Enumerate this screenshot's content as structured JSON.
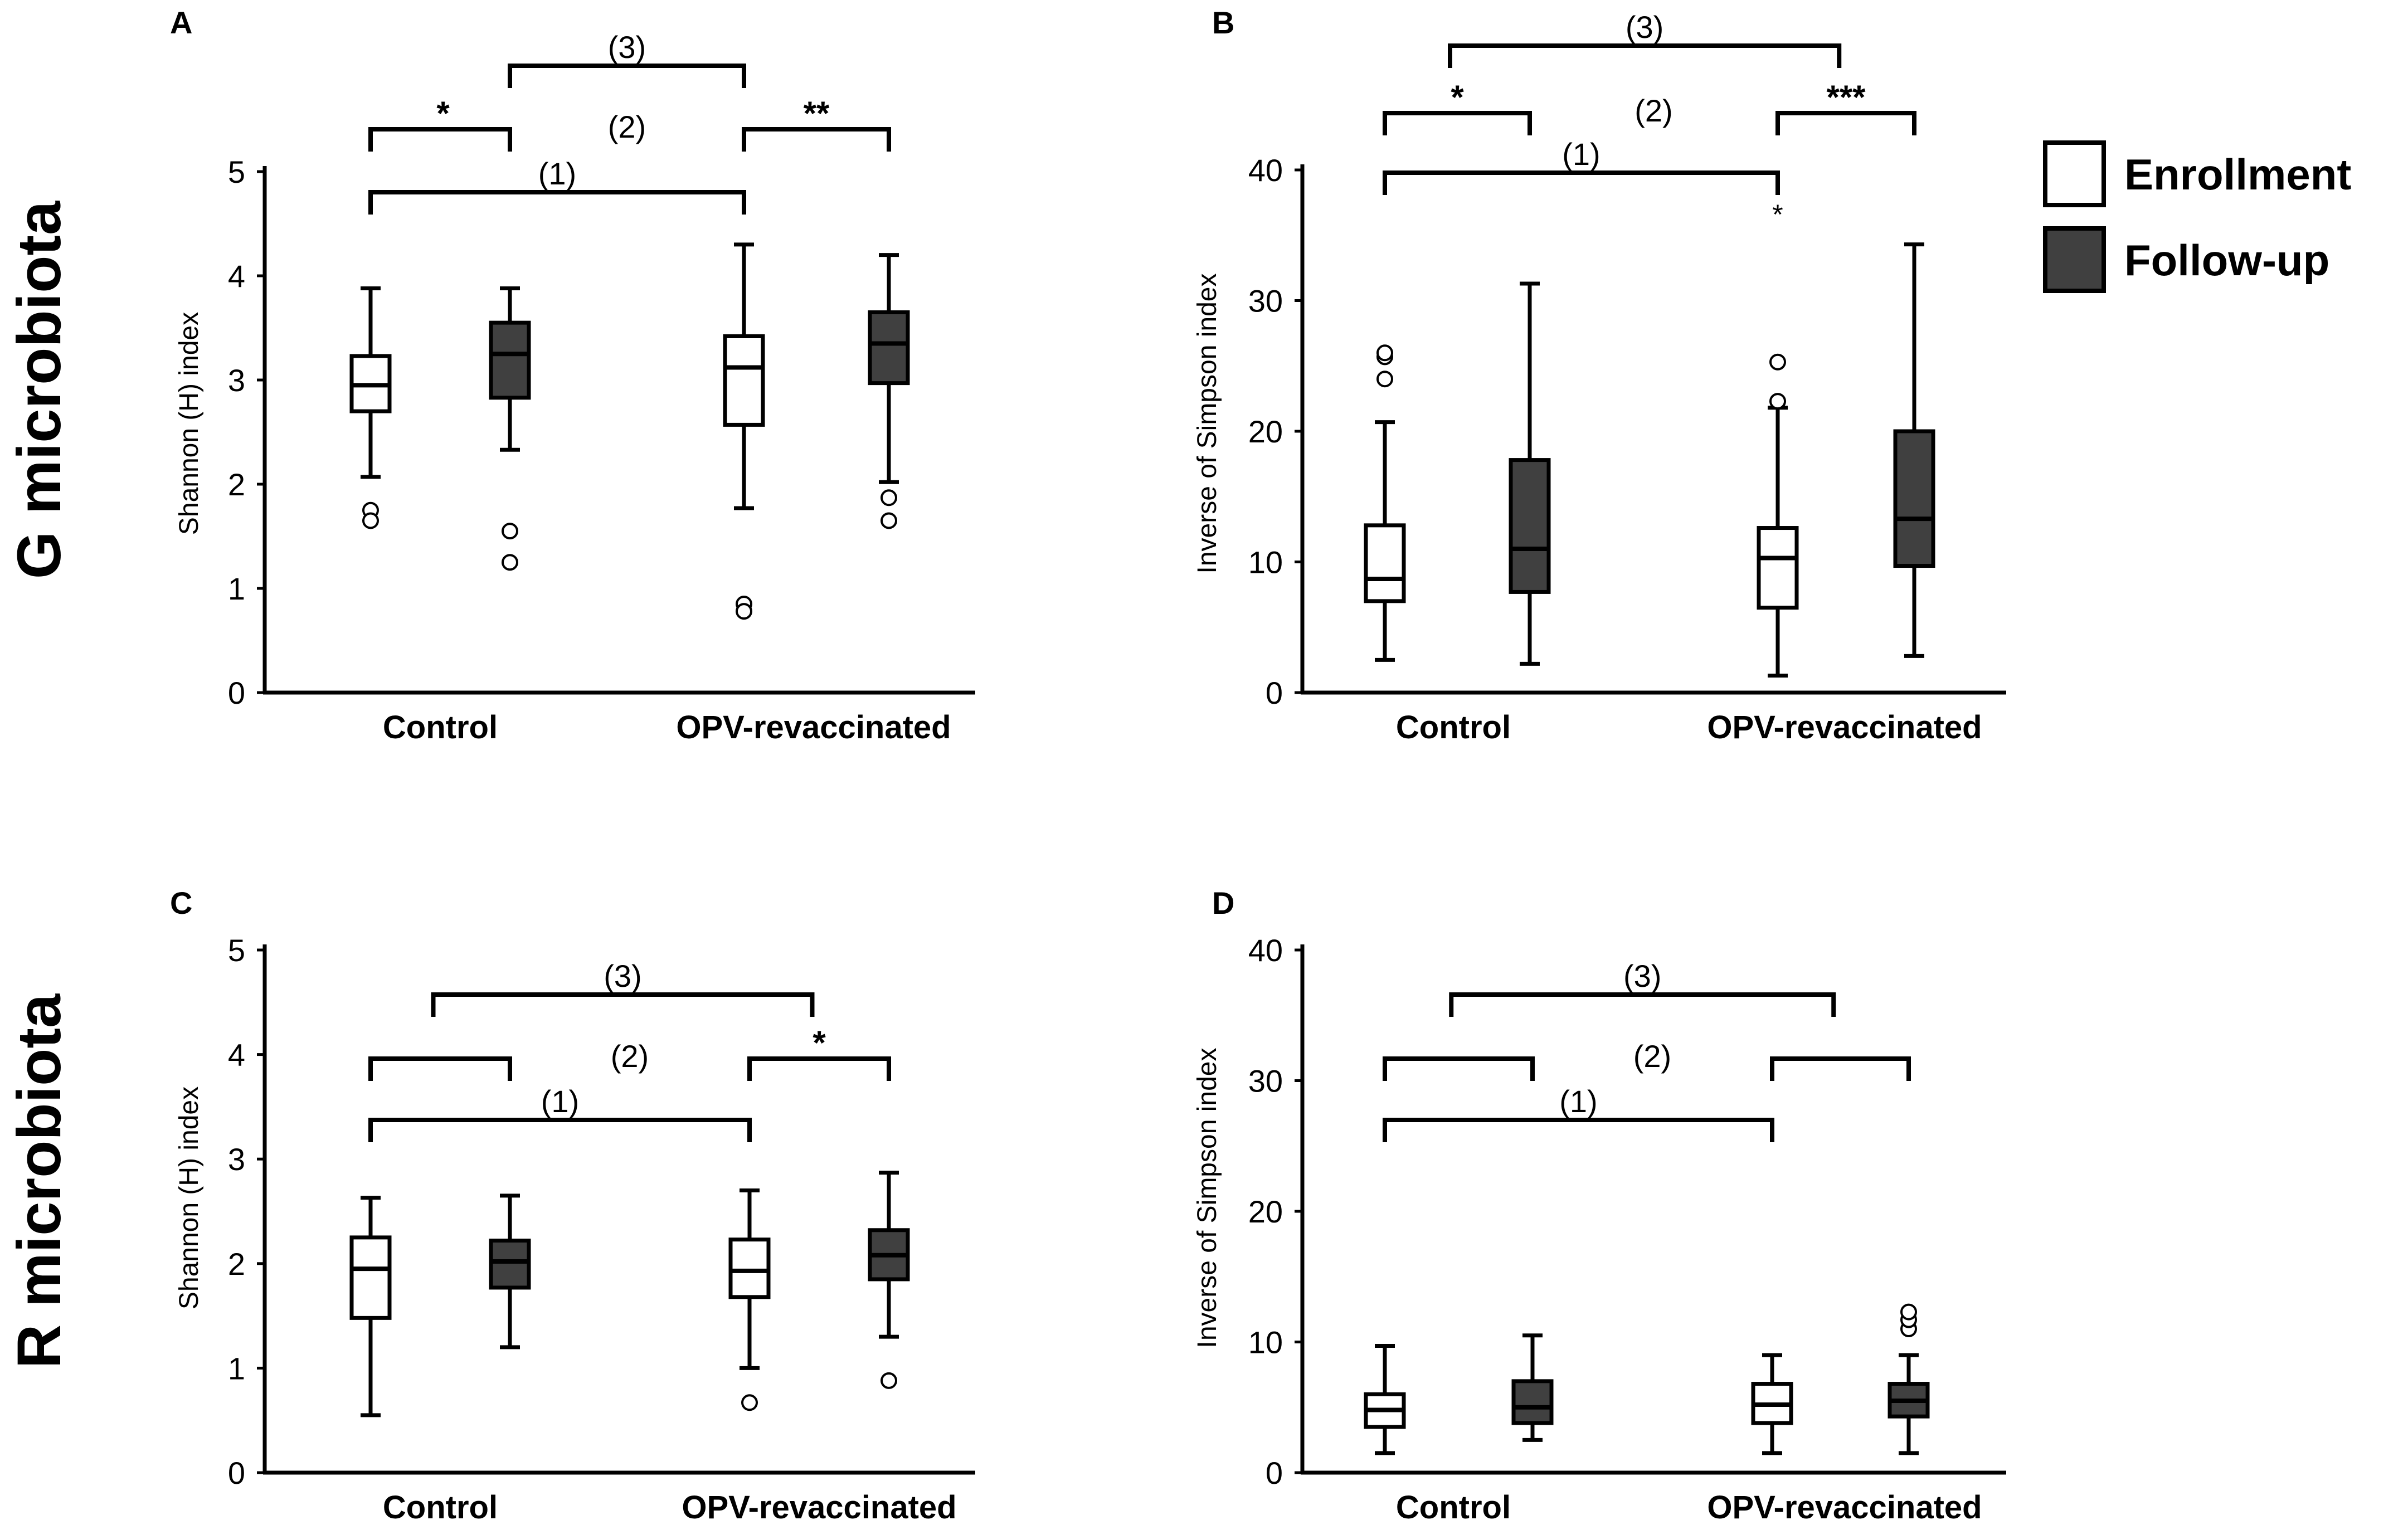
{
  "figure": {
    "row_labels": [
      "G microbiota",
      "R microbiota"
    ],
    "legend": [
      {
        "label": "Enrollment",
        "fill": "#ffffff"
      },
      {
        "label": "Follow-up",
        "fill": "#404040"
      }
    ],
    "colors": {
      "enrollment": "#ffffff",
      "followup": "#404040",
      "stroke": "#000000"
    }
  },
  "chart_data": [
    {
      "panel": "A",
      "type": "box",
      "ylabel": "Shannon (H) index",
      "ylim": [
        0,
        5
      ],
      "yticks": [
        0,
        1,
        2,
        3,
        4,
        5
      ],
      "categories": [
        "Control",
        "OPV-revaccinated"
      ],
      "boxes": [
        {
          "group": "Control",
          "series": "Enrollment",
          "whisker_low": 2.07,
          "q1": 2.7,
          "median": 2.95,
          "q3": 3.23,
          "whisker_high": 3.88,
          "outliers": [
            1.75,
            1.65
          ],
          "extremes": []
        },
        {
          "group": "Control",
          "series": "Follow-up",
          "whisker_low": 2.33,
          "q1": 2.83,
          "median": 3.25,
          "q3": 3.55,
          "whisker_high": 3.88,
          "outliers": [
            1.55,
            1.25
          ],
          "extremes": []
        },
        {
          "group": "OPV-revaccinated",
          "series": "Enrollment",
          "whisker_low": 1.77,
          "q1": 2.57,
          "median": 3.12,
          "q3": 3.42,
          "whisker_high": 4.3,
          "outliers": [
            0.85,
            0.78
          ],
          "extremes": []
        },
        {
          "group": "OPV-revaccinated",
          "series": "Follow-up",
          "whisker_low": 2.02,
          "q1": 2.97,
          "median": 3.35,
          "q3": 3.65,
          "whisker_high": 4.2,
          "outliers": [
            1.87,
            1.65
          ],
          "extremes": []
        }
      ],
      "brackets": [
        {
          "label": "(3)",
          "sig": "",
          "from": 1,
          "to": 2
        },
        {
          "label": "(2)",
          "sig": "*",
          "from": 0,
          "to": 1
        },
        {
          "label": "",
          "sig": "**",
          "from": 2,
          "to": 3
        },
        {
          "label": "(1)",
          "sig": "",
          "from": 0,
          "to": 2
        }
      ]
    },
    {
      "panel": "B",
      "type": "box",
      "ylabel": "Inverse of Simpson index",
      "ylim": [
        0,
        40
      ],
      "yticks": [
        0,
        10,
        20,
        30,
        40
      ],
      "categories": [
        "Control",
        "OPV-revaccinated"
      ],
      "boxes": [
        {
          "group": "Control",
          "series": "Enrollment",
          "whisker_low": 2.5,
          "q1": 7.0,
          "median": 8.7,
          "q3": 12.8,
          "whisker_high": 20.7,
          "outliers": [
            24.0,
            25.7,
            26.0
          ],
          "extremes": []
        },
        {
          "group": "Control",
          "series": "Follow-up",
          "whisker_low": 2.2,
          "q1": 7.7,
          "median": 11.0,
          "q3": 17.8,
          "whisker_high": 31.3,
          "outliers": [],
          "extremes": []
        },
        {
          "group": "OPV-revaccinated",
          "series": "Enrollment",
          "whisker_low": 1.3,
          "q1": 6.5,
          "median": 10.3,
          "q3": 12.6,
          "whisker_high": 21.8,
          "outliers": [
            22.3,
            25.3
          ],
          "extremes": [
            36.8
          ]
        },
        {
          "group": "OPV-revaccinated",
          "series": "Follow-up",
          "whisker_low": 2.8,
          "q1": 9.7,
          "median": 13.3,
          "q3": 20.0,
          "whisker_high": 34.3,
          "outliers": [],
          "extremes": []
        }
      ],
      "brackets": [
        {
          "label": "(3)",
          "sig": "",
          "from": 0.45,
          "to": 2.45
        },
        {
          "label": "(2)",
          "sig": "*",
          "from": 0,
          "to": 1
        },
        {
          "label": "",
          "sig": "***",
          "from": 2,
          "to": 3
        },
        {
          "label": "(1)",
          "sig": "",
          "from": 0,
          "to": 2
        }
      ]
    },
    {
      "panel": "C",
      "type": "box",
      "ylabel": "Shannon (H) index",
      "ylim": [
        0,
        5
      ],
      "yticks": [
        0,
        1,
        2,
        3,
        4,
        5
      ],
      "categories": [
        "Control",
        "OPV-revaccinated"
      ],
      "boxes": [
        {
          "group": "Control",
          "series": "Enrollment",
          "whisker_low": 0.55,
          "q1": 1.48,
          "median": 1.95,
          "q3": 2.25,
          "whisker_high": 2.63,
          "outliers": [],
          "extremes": []
        },
        {
          "group": "Control",
          "series": "Follow-up",
          "whisker_low": 1.2,
          "q1": 1.77,
          "median": 2.02,
          "q3": 2.22,
          "whisker_high": 2.65,
          "outliers": [],
          "extremes": []
        },
        {
          "group": "OPV-revaccinated",
          "series": "Enrollment",
          "whisker_low": 1.0,
          "q1": 1.68,
          "median": 1.93,
          "q3": 2.23,
          "whisker_high": 2.7,
          "outliers": [
            0.67
          ],
          "extremes": []
        },
        {
          "group": "OPV-revaccinated",
          "series": "Follow-up",
          "whisker_low": 1.3,
          "q1": 1.85,
          "median": 2.08,
          "q3": 2.32,
          "whisker_high": 2.87,
          "outliers": [
            0.88
          ],
          "extremes": []
        }
      ],
      "brackets": [
        {
          "label": "(3)",
          "sig": "",
          "from": 0.45,
          "to": 2.45
        },
        {
          "label": "(2)",
          "sig": "",
          "from": 0,
          "to": 1
        },
        {
          "label": "",
          "sig": "*",
          "from": 2,
          "to": 3
        },
        {
          "label": "(1)",
          "sig": "",
          "from": 0,
          "to": 2
        }
      ]
    },
    {
      "panel": "D",
      "type": "box",
      "ylabel": "Inverse of Simpson index",
      "ylim": [
        0,
        40
      ],
      "yticks": [
        0,
        10,
        20,
        30,
        40
      ],
      "categories": [
        "Control",
        "OPV-revaccinated"
      ],
      "boxes": [
        {
          "group": "Control",
          "series": "Enrollment",
          "whisker_low": 1.5,
          "q1": 3.5,
          "median": 4.8,
          "q3": 6.0,
          "whisker_high": 9.7,
          "outliers": [],
          "extremes": []
        },
        {
          "group": "Control",
          "series": "Follow-up",
          "whisker_low": 2.5,
          "q1": 3.8,
          "median": 5.0,
          "q3": 7.0,
          "whisker_high": 10.5,
          "outliers": [],
          "extremes": []
        },
        {
          "group": "OPV-revaccinated",
          "series": "Enrollment",
          "whisker_low": 1.5,
          "q1": 3.8,
          "median": 5.2,
          "q3": 6.8,
          "whisker_high": 9.0,
          "outliers": [],
          "extremes": []
        },
        {
          "group": "OPV-revaccinated",
          "series": "Follow-up",
          "whisker_low": 1.5,
          "q1": 4.3,
          "median": 5.5,
          "q3": 6.8,
          "whisker_high": 9.0,
          "outliers": [
            11.0,
            11.7,
            12.3
          ],
          "extremes": []
        }
      ],
      "brackets": [
        {
          "label": "(3)",
          "sig": "",
          "from": 0.45,
          "to": 2.45
        },
        {
          "label": "(2)",
          "sig": "",
          "from": 0,
          "to": 1
        },
        {
          "label": "",
          "sig": "",
          "from": 2,
          "to": 3
        },
        {
          "label": "(1)",
          "sig": "",
          "from": 0,
          "to": 2
        }
      ]
    }
  ]
}
